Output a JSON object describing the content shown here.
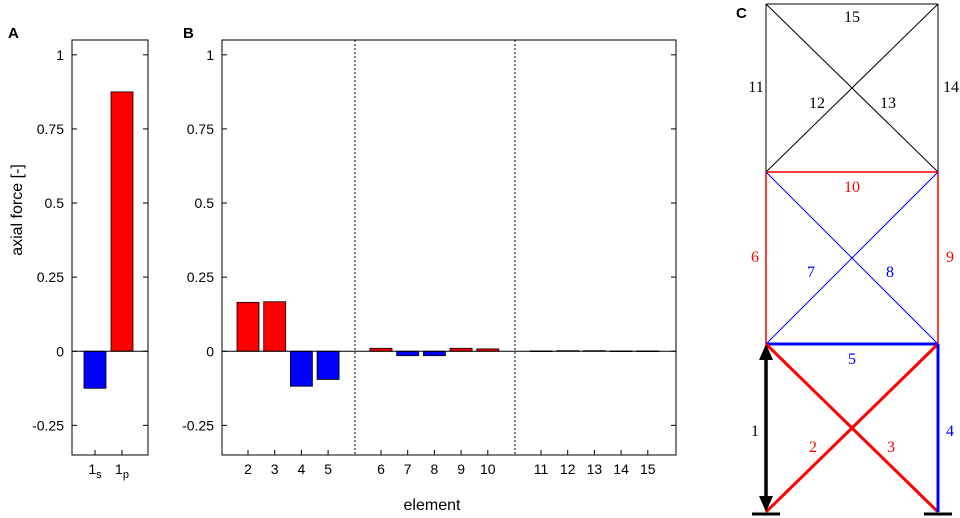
{
  "colors": {
    "tension": "#ff0000",
    "compression": "#0000ff",
    "neutral": "#000000"
  },
  "chart_data": [
    {
      "panel": "A",
      "type": "bar",
      "ylabel": "axial force [-]",
      "ylim": [
        -0.35,
        1.05
      ],
      "yticks": [
        "1",
        "0.75",
        "0.5",
        "0.25",
        "0",
        "-0.25"
      ],
      "ytick_values": [
        1,
        0.75,
        0.5,
        0.25,
        0,
        -0.25
      ],
      "categories": [
        {
          "base": "1",
          "sub": "s"
        },
        {
          "base": "1",
          "sub": "p"
        }
      ],
      "values": [
        -0.125,
        0.875
      ],
      "bar_colors": [
        "#0000ff",
        "#ff0000"
      ]
    },
    {
      "panel": "B",
      "type": "bar",
      "xlabel": "element",
      "ylim": [
        -0.35,
        1.05
      ],
      "yticks": [
        "1",
        "0.75",
        "0.5",
        "0.25",
        "0",
        "-0.25"
      ],
      "ytick_values": [
        1,
        0.75,
        0.5,
        0.25,
        0,
        -0.25
      ],
      "categories": [
        "2",
        "3",
        "4",
        "5",
        "6",
        "7",
        "8",
        "9",
        "10",
        "11",
        "12",
        "13",
        "14",
        "15"
      ],
      "values": [
        0.165,
        0.167,
        -0.118,
        -0.095,
        0.01,
        -0.015,
        -0.015,
        0.01,
        0.008,
        0.001,
        0.002,
        0.002,
        0.001,
        0.001
      ],
      "bar_colors": [
        "#ff0000",
        "#ff0000",
        "#0000ff",
        "#0000ff",
        "#ff0000",
        "#0000ff",
        "#0000ff",
        "#ff0000",
        "#ff0000",
        "#ff0000",
        "#ff0000",
        "#ff0000",
        "#ff0000",
        "#ff0000"
      ],
      "group_separators_after": [
        "5",
        "10"
      ]
    }
  ],
  "diagram": {
    "panel": "C",
    "labels": [
      "1",
      "2",
      "3",
      "4",
      "5",
      "6",
      "7",
      "8",
      "9",
      "10",
      "11",
      "12",
      "13",
      "14",
      "15"
    ]
  }
}
